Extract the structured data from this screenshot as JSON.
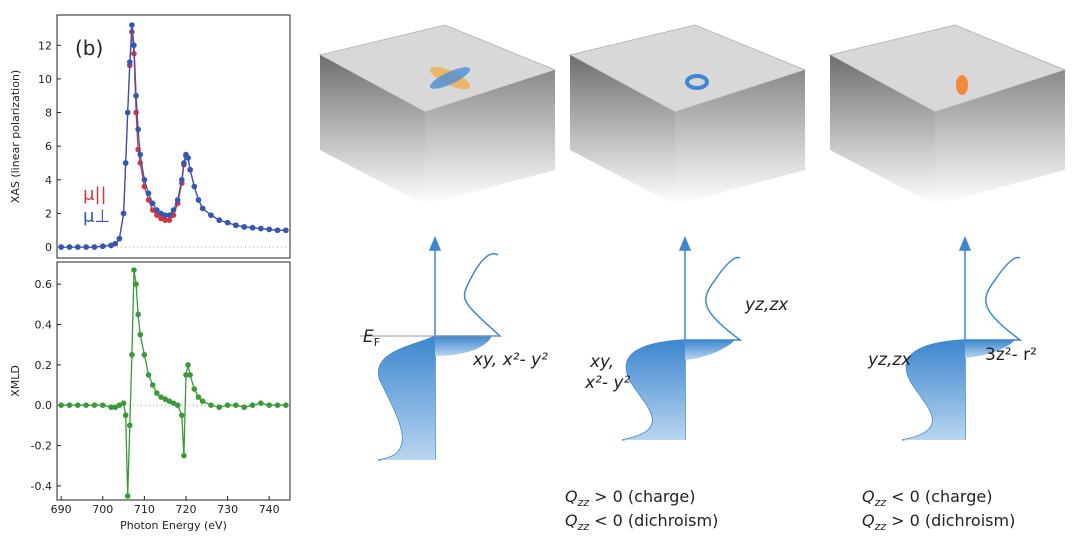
{
  "chart_data": [
    {
      "type": "line",
      "ylabel": "XAS (linear polarization)",
      "annotation": "(b)",
      "x": [
        690,
        692,
        694,
        696,
        698,
        700,
        702,
        703,
        704,
        705,
        705.5,
        706,
        706.5,
        707,
        707.5,
        708,
        708.5,
        709,
        710,
        711,
        712,
        713,
        714,
        715,
        716,
        717,
        718,
        719,
        719.5,
        720,
        720.5,
        721,
        722,
        723,
        724,
        726,
        728,
        730,
        732,
        734,
        736,
        738,
        740,
        742,
        744
      ],
      "series": [
        {
          "name": "μ||",
          "color": "#d9343f",
          "values": [
            0,
            0,
            0,
            0,
            0,
            0.05,
            0.1,
            0.2,
            0.5,
            2,
            5,
            8,
            10.8,
            12.8,
            11.5,
            8,
            5.8,
            5,
            3.6,
            2.8,
            2.2,
            1.9,
            1.7,
            1.6,
            1.6,
            1.9,
            2.6,
            3.8,
            4.9,
            5.4,
            5.3,
            4.6,
            3.6,
            2.8,
            2.3,
            1.9,
            1.6,
            1.45,
            1.3,
            1.2,
            1.15,
            1.1,
            1.05,
            1,
            1
          ]
        },
        {
          "name": "μ⊥",
          "color": "#3158b4",
          "values": [
            0,
            0,
            0,
            0,
            0,
            0.05,
            0.1,
            0.2,
            0.5,
            2,
            5,
            8,
            11,
            13.2,
            12,
            9,
            7,
            5.5,
            4,
            3.2,
            2.6,
            2.2,
            2,
            1.9,
            1.9,
            2.2,
            2.8,
            4,
            5,
            5.5,
            5.3,
            4.6,
            3.6,
            2.8,
            2.3,
            1.9,
            1.6,
            1.45,
            1.3,
            1.2,
            1.15,
            1.1,
            1.05,
            1,
            1
          ]
        }
      ],
      "xlim": [
        689,
        745
      ],
      "ylim": [
        -0.65,
        13.8
      ],
      "yticks": [
        0,
        2,
        4,
        6,
        8,
        10,
        12
      ]
    },
    {
      "type": "line",
      "ylabel": "XMLD",
      "xlabel": "Photon Energy (eV)",
      "x": [
        690,
        692,
        694,
        696,
        698,
        700,
        702,
        703,
        704,
        705,
        705.5,
        706,
        706.5,
        707,
        707.5,
        708,
        708.5,
        709,
        710,
        711,
        712,
        713,
        714,
        715,
        716,
        717,
        718,
        719,
        719.5,
        720,
        720.5,
        721,
        722,
        723,
        724,
        726,
        728,
        730,
        732,
        734,
        736,
        738,
        740,
        742,
        744
      ],
      "series": [
        {
          "color": "#3a9a3a",
          "values": [
            0,
            0,
            0,
            0,
            0,
            0,
            -0.01,
            -0.01,
            0,
            0.01,
            -0.05,
            -0.45,
            -0.1,
            0.25,
            0.67,
            0.6,
            0.45,
            0.35,
            0.25,
            0.15,
            0.1,
            0.06,
            0.04,
            0.03,
            0.02,
            0.01,
            0,
            -0.05,
            -0.25,
            0.15,
            0.2,
            0.15,
            0.08,
            0.04,
            0.02,
            0,
            -0.01,
            0,
            0,
            -0.01,
            0,
            0.01,
            0,
            0,
            0
          ]
        }
      ],
      "xlim": [
        689,
        745
      ],
      "ylim": [
        -0.47,
        0.71
      ],
      "xticks": [
        690,
        700,
        710,
        720,
        730,
        740
      ],
      "yticks": [
        -0.4,
        -0.2,
        {
          "value": 0,
          "label": "0.0"
        },
        0.2,
        0.4,
        0.6
      ]
    }
  ],
  "diagrams": {
    "fermi_label": "E",
    "fermi_sub": "F",
    "panel1_orbitals": "xy, x²- y²",
    "panel2_upper": "yz,zx",
    "panel2_lower_1": "xy,",
    "panel2_lower_2": "x²- y²",
    "panel3_lower": "yz,zx",
    "panel3_upper": "3z²- r²",
    "panel2_q": [
      {
        "symbol": "Q",
        "sub": "zz",
        "text": "> 0 (charge)"
      },
      {
        "symbol": "Q",
        "sub": "zz",
        "text": "< 0 (dichroism)"
      }
    ],
    "panel3_q": [
      {
        "symbol": "Q",
        "sub": "zz",
        "text": "< 0 (charge)"
      },
      {
        "symbol": "Q",
        "sub": "zz",
        "text": "> 0 (dichroism)"
      }
    ]
  }
}
